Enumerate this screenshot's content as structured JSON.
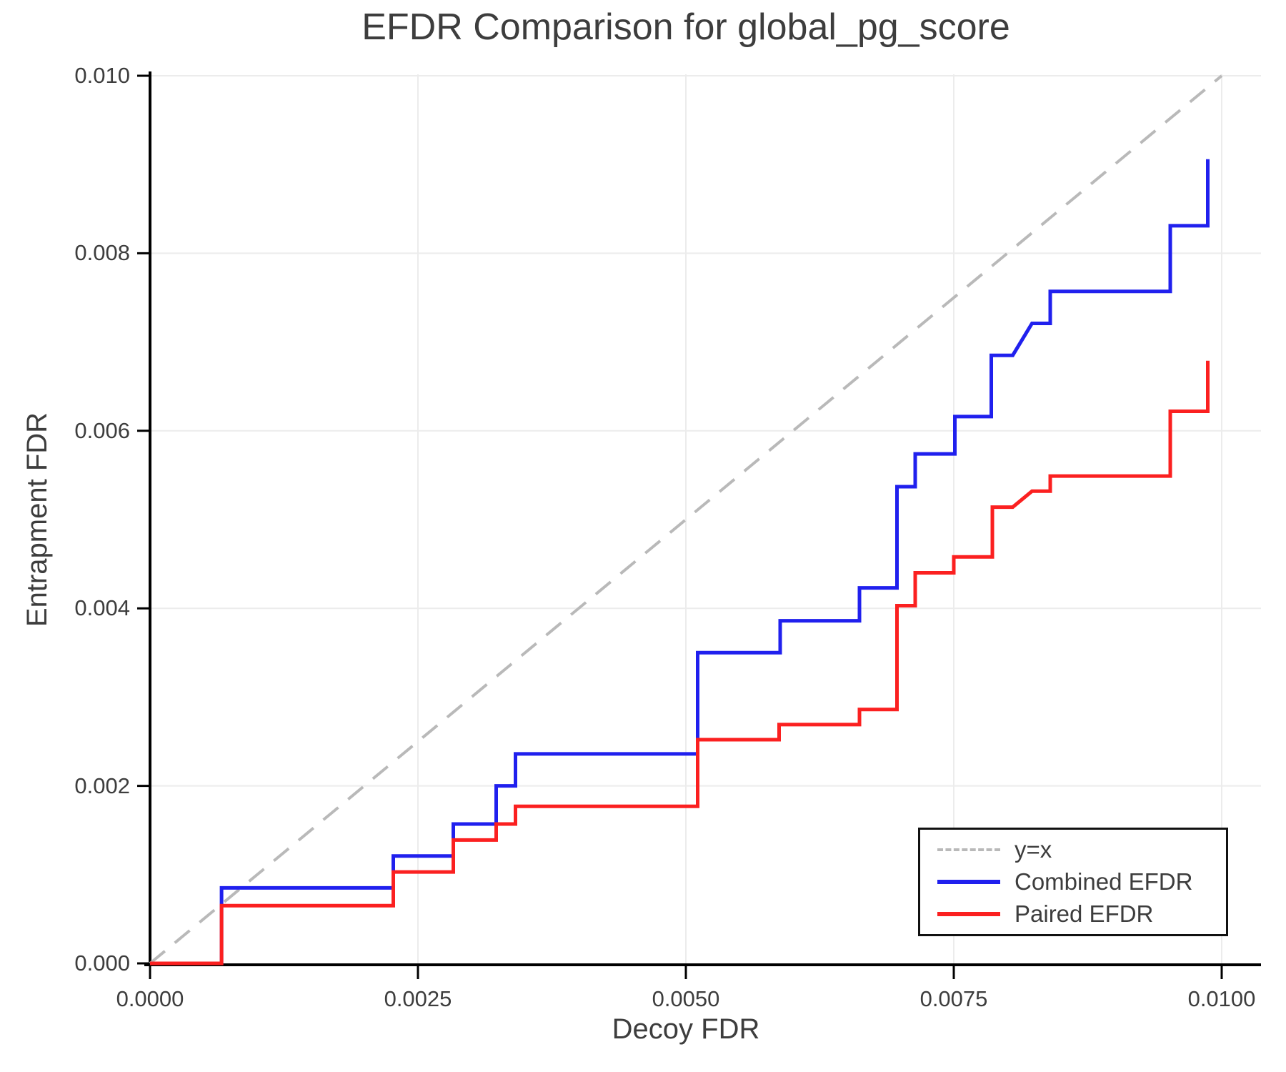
{
  "title": "EFDR Comparison for global_pg_score",
  "x_axis": {
    "label": "Decoy FDR",
    "tick_labels": [
      "0.0000",
      "0.0025",
      "0.0050",
      "0.0075",
      "0.0100"
    ],
    "tick_values": [
      0,
      0.0025,
      0.005,
      0.0075,
      0.01
    ]
  },
  "y_axis": {
    "label": "Entrapment FDR",
    "tick_labels": [
      "0.000",
      "0.002",
      "0.004",
      "0.006",
      "0.008",
      "0.010"
    ],
    "tick_values": [
      0,
      0.002,
      0.004,
      0.006,
      0.008,
      0.01
    ]
  },
  "legend": {
    "entries": [
      {
        "label": "y=x",
        "color": "#b9b9b9",
        "dashed": true
      },
      {
        "label": "Combined EFDR",
        "color": "#2020ee",
        "dashed": false
      },
      {
        "label": "Paired EFDR",
        "color": "#fb2020",
        "dashed": false
      }
    ]
  },
  "colors": {
    "combined": "#2020ee",
    "paired": "#fb2020",
    "identity": "#b9b9b9",
    "grid": "#ececec",
    "spine": "#000000",
    "text": "#3d3d3d"
  },
  "chart_data": {
    "type": "line",
    "title": "EFDR Comparison for global_pg_score",
    "xlabel": "Decoy FDR",
    "ylabel": "Entrapment FDR",
    "xlim": [
      0,
      0.01
    ],
    "ylim": [
      0,
      0.01
    ],
    "grid": true,
    "legend_position": "lower right",
    "series": [
      {
        "name": "y=x",
        "style": "dashed",
        "color": "#b9b9b9",
        "points": [
          [
            0,
            0
          ],
          [
            0.01,
            0.01
          ]
        ]
      },
      {
        "name": "Combined EFDR",
        "style": "solid",
        "color": "#2020ee",
        "points": [
          [
            0,
            0
          ],
          [
            0.000667,
            0
          ],
          [
            0.000667,
            0.00085
          ],
          [
            0.00227,
            0.00085
          ],
          [
            0.00227,
            0.00121
          ],
          [
            0.00283,
            0.00121
          ],
          [
            0.00283,
            0.00157
          ],
          [
            0.00323,
            0.00157
          ],
          [
            0.00323,
            0.002
          ],
          [
            0.00341,
            0.002
          ],
          [
            0.00341,
            0.00236
          ],
          [
            0.00511,
            0.00236
          ],
          [
            0.00511,
            0.0035
          ],
          [
            0.00588,
            0.0035
          ],
          [
            0.00588,
            0.00386
          ],
          [
            0.00662,
            0.00386
          ],
          [
            0.00662,
            0.00423
          ],
          [
            0.00697,
            0.00423
          ],
          [
            0.00697,
            0.00537
          ],
          [
            0.00714,
            0.00537
          ],
          [
            0.00714,
            0.00574
          ],
          [
            0.00751,
            0.00574
          ],
          [
            0.00751,
            0.00616
          ],
          [
            0.00785,
            0.00616
          ],
          [
            0.00785,
            0.00685
          ],
          [
            0.00805,
            0.00685
          ],
          [
            0.00823,
            0.00721
          ],
          [
            0.0084,
            0.00721
          ],
          [
            0.0084,
            0.00757
          ],
          [
            0.00952,
            0.00757
          ],
          [
            0.00952,
            0.00831
          ],
          [
            0.00987,
            0.00831
          ],
          [
            0.00987,
            0.00906
          ]
        ]
      },
      {
        "name": "Paired EFDR",
        "style": "solid",
        "color": "#fb2020",
        "points": [
          [
            0,
            0
          ],
          [
            0.000667,
            0
          ],
          [
            0.000667,
            0.00065
          ],
          [
            0.00227,
            0.00065
          ],
          [
            0.00227,
            0.00103
          ],
          [
            0.00283,
            0.00103
          ],
          [
            0.00283,
            0.00139
          ],
          [
            0.00323,
            0.00139
          ],
          [
            0.00323,
            0.00157
          ],
          [
            0.00341,
            0.00157
          ],
          [
            0.00341,
            0.00177
          ],
          [
            0.00511,
            0.00177
          ],
          [
            0.00511,
            0.00252
          ],
          [
            0.00587,
            0.00252
          ],
          [
            0.00587,
            0.00269
          ],
          [
            0.00662,
            0.00269
          ],
          [
            0.00662,
            0.00286
          ],
          [
            0.00697,
            0.00286
          ],
          [
            0.00697,
            0.00403
          ],
          [
            0.00714,
            0.00403
          ],
          [
            0.00714,
            0.0044
          ],
          [
            0.0075,
            0.0044
          ],
          [
            0.0075,
            0.00458
          ],
          [
            0.00786,
            0.00458
          ],
          [
            0.00786,
            0.00514
          ],
          [
            0.00805,
            0.00514
          ],
          [
            0.00823,
            0.00532
          ],
          [
            0.0084,
            0.00532
          ],
          [
            0.0084,
            0.00549
          ],
          [
            0.00952,
            0.00549
          ],
          [
            0.00952,
            0.00622
          ],
          [
            0.00987,
            0.00622
          ],
          [
            0.00987,
            0.00679
          ]
        ]
      }
    ]
  }
}
